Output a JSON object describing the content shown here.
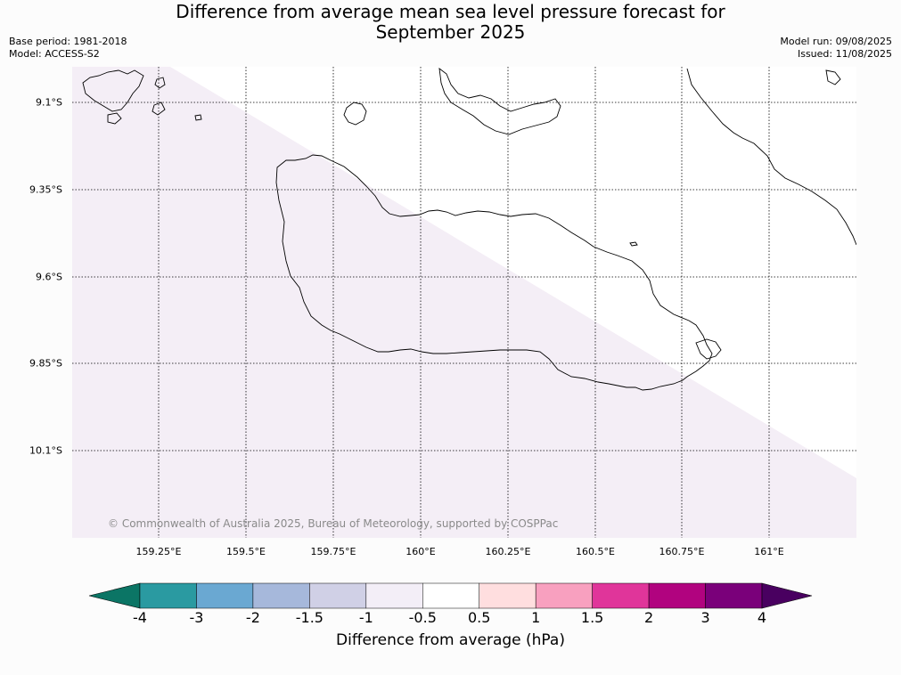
{
  "title": {
    "line1": "Difference from average mean sea level pressure forecast for",
    "line2": "September 2025"
  },
  "meta": {
    "base_period": "Base period: 1981-2018",
    "model": "Model: ACCESS-S2",
    "model_run": "Model run: 09/08/2025",
    "issued": "Issued: 11/08/2025"
  },
  "map": {
    "lat_labels": [
      "9.1°S",
      "9.35°S",
      "9.6°S",
      "9.85°S",
      "10.1°S"
    ],
    "lon_labels": [
      "159.25°E",
      "159.5°E",
      "159.75°E",
      "160°E",
      "160.25°E",
      "160.5°E",
      "160.75°E",
      "161°E"
    ],
    "copyright": "© Commonwealth of Australia 2025, Bureau of Meteorology, supported by COSPPac",
    "region_light_color": "#f4eef6",
    "region_white_color": "#ffffff",
    "coastline_color": "#000000",
    "gridline_style": "dotted"
  },
  "colorbar": {
    "label": "Difference from average (hPa)",
    "ticks": [
      "-4",
      "-3",
      "-2",
      "-1.5",
      "-1",
      "-0.5",
      "0.5",
      "1",
      "1.5",
      "2",
      "3",
      "4"
    ],
    "colors": [
      "#0b7565",
      "#2a9aa1",
      "#6aa8d2",
      "#a6b8db",
      "#d0d0e6",
      "#f3eef7",
      "#ffffff",
      "#ffdedf",
      "#f8a0bf",
      "#e0359a",
      "#b1037f",
      "#7a007a",
      "#490060"
    ]
  }
}
